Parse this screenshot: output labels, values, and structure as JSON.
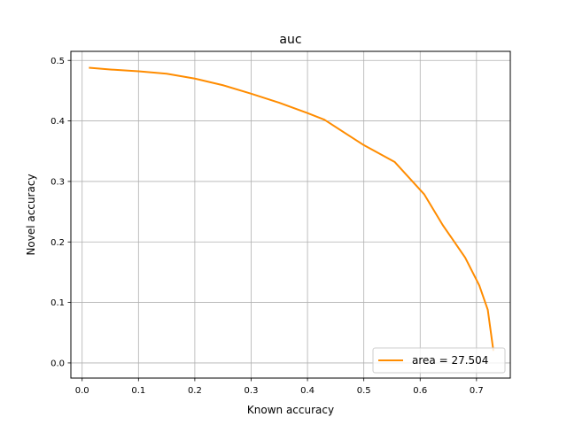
{
  "chart_data": {
    "type": "line",
    "title": "auc",
    "xlabel": "Known accuracy",
    "ylabel": "Novel accuracy",
    "xlim": [
      -0.02,
      0.76
    ],
    "ylim": [
      -0.025,
      0.515
    ],
    "xticks": [
      0.0,
      0.1,
      0.2,
      0.3,
      0.4,
      0.5,
      0.6,
      0.7
    ],
    "xtick_labels": [
      "0.0",
      "0.1",
      "0.2",
      "0.3",
      "0.4",
      "0.5",
      "0.6",
      "0.7"
    ],
    "yticks": [
      0.0,
      0.1,
      0.2,
      0.3,
      0.4,
      0.5
    ],
    "ytick_labels": [
      "0.0",
      "0.1",
      "0.2",
      "0.3",
      "0.4",
      "0.5"
    ],
    "grid": true,
    "legend_position": "lower-right",
    "series": [
      {
        "name": "area = 27.504",
        "color": "#ff8c00",
        "x": [
          0.012,
          0.05,
          0.1,
          0.15,
          0.2,
          0.25,
          0.3,
          0.35,
          0.4,
          0.43,
          0.5,
          0.555,
          0.607,
          0.64,
          0.68,
          0.705,
          0.72,
          0.73
        ],
        "y": [
          0.488,
          0.485,
          0.482,
          0.478,
          0.47,
          0.459,
          0.445,
          0.43,
          0.413,
          0.402,
          0.36,
          0.332,
          0.279,
          0.228,
          0.174,
          0.128,
          0.088,
          0.02
        ]
      }
    ]
  }
}
